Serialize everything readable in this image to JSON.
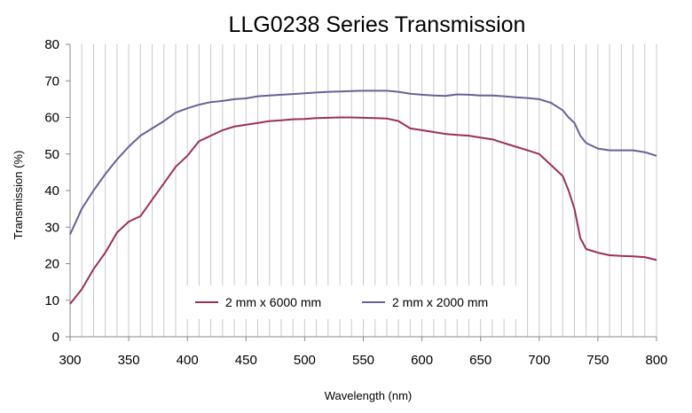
{
  "chart_data": {
    "type": "line",
    "title": "LLG0238 Series Transmission",
    "xlabel": "Wavelength (nm)",
    "ylabel": "Transmission (%)",
    "xlim": [
      300,
      800
    ],
    "ylim": [
      0,
      80
    ],
    "x_ticks": [
      300,
      350,
      400,
      450,
      500,
      550,
      600,
      650,
      700,
      750,
      800
    ],
    "y_ticks": [
      0,
      10,
      20,
      30,
      40,
      50,
      60,
      70,
      80
    ],
    "grid": "vertical",
    "legend_position": "bottom-center",
    "colors": {
      "2mm_6000": "#9b2f5c",
      "2mm_2000": "#6b5f97",
      "grid": "#c8c8d2",
      "axis": "#888888"
    },
    "series": [
      {
        "name": "2 mm x 6000 mm",
        "color": "#9b2f5c",
        "x": [
          300,
          310,
          320,
          330,
          340,
          350,
          360,
          370,
          380,
          390,
          400,
          410,
          420,
          430,
          440,
          450,
          460,
          470,
          480,
          490,
          500,
          510,
          520,
          530,
          540,
          550,
          560,
          570,
          580,
          590,
          600,
          610,
          620,
          630,
          640,
          650,
          660,
          670,
          680,
          690,
          700,
          710,
          720,
          725,
          730,
          735,
          740,
          750,
          760,
          770,
          780,
          790,
          800
        ],
        "y": [
          9,
          13,
          18.5,
          23,
          28.5,
          31.5,
          33,
          37.5,
          42,
          46.5,
          49.5,
          53.5,
          55,
          56.5,
          57.5,
          58,
          58.5,
          59,
          59.2,
          59.5,
          59.6,
          59.8,
          59.9,
          60,
          60,
          59.9,
          59.8,
          59.7,
          59,
          57,
          56.5,
          56,
          55.5,
          55.2,
          55,
          54.5,
          54,
          53,
          52,
          51,
          50,
          47,
          44,
          40,
          35,
          27,
          24,
          23,
          22.3,
          22.1,
          22,
          21.8,
          21
        ]
      },
      {
        "name": "2 mm x 2000 mm",
        "color": "#6b5f97",
        "x": [
          300,
          310,
          320,
          330,
          340,
          350,
          360,
          370,
          380,
          390,
          400,
          410,
          420,
          430,
          440,
          450,
          460,
          470,
          480,
          490,
          500,
          510,
          520,
          530,
          540,
          550,
          560,
          570,
          580,
          590,
          600,
          610,
          620,
          630,
          640,
          650,
          660,
          670,
          680,
          690,
          700,
          710,
          720,
          725,
          730,
          735,
          740,
          750,
          760,
          770,
          780,
          790,
          800
        ],
        "y": [
          28,
          35,
          40,
          44.5,
          48.5,
          52,
          55,
          57,
          59,
          61.3,
          62.5,
          63.5,
          64.2,
          64.5,
          65,
          65.2,
          65.8,
          66,
          66.2,
          66.4,
          66.6,
          66.8,
          67,
          67.1,
          67.2,
          67.3,
          67.3,
          67.3,
          67,
          66.5,
          66.2,
          66,
          65.9,
          66.3,
          66.2,
          66,
          66,
          65.8,
          65.5,
          65.3,
          65,
          64,
          62,
          60,
          58.5,
          55,
          53,
          51.5,
          51,
          51,
          51,
          50.5,
          49.5
        ]
      }
    ]
  }
}
